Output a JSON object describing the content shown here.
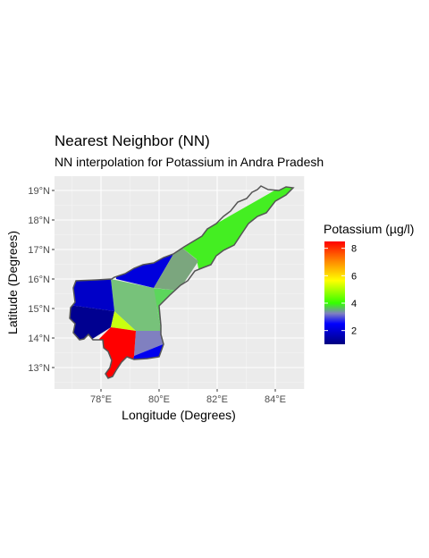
{
  "title": "Nearest Neighbor (NN)",
  "subtitle": "NN interpolation for Potassium in Andra Pradesh",
  "xlabel": "Longitude (Degrees)",
  "ylabel": "Latitude (Degrees)",
  "x_ticks": [
    "78°E",
    "80°E",
    "82°E",
    "84°E"
  ],
  "y_ticks": [
    "13°N",
    "14°N",
    "15°N",
    "16°N",
    "17°N",
    "18°N",
    "19°N"
  ],
  "legend": {
    "title": "Potassium (µg/l)",
    "ticks": [
      "2",
      "4",
      "6",
      "8"
    ],
    "colors": [
      "#000080",
      "#0000ff",
      "#00ff00",
      "#ffff00",
      "#ff0000"
    ]
  },
  "chart_data": {
    "type": "heatmap",
    "title": "Nearest Neighbor (NN)",
    "subtitle": "NN interpolation for Potassium in Andra Pradesh",
    "xlabel": "Longitude (Degrees)",
    "ylabel": "Latitude (Degrees)",
    "xlim": [
      76.4,
      85.2
    ],
    "ylim": [
      12.3,
      19.4
    ],
    "x_ticks": [
      78,
      80,
      82,
      84
    ],
    "y_ticks": [
      13,
      14,
      15,
      16,
      17,
      18,
      19
    ],
    "color_scale": {
      "name": "Potassium (µg/l)",
      "min": 1,
      "max": 8.5,
      "ticks": [
        2,
        4,
        6,
        8
      ]
    },
    "grid": true,
    "legend_position": "right"
  }
}
